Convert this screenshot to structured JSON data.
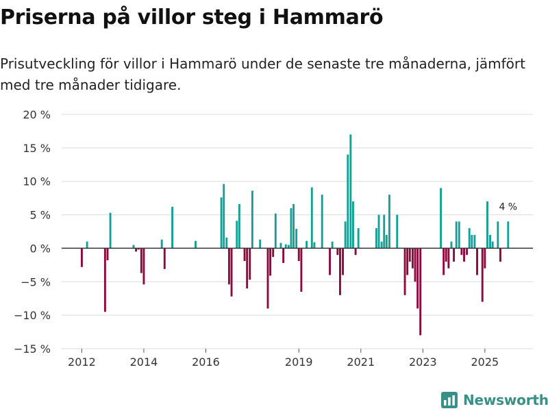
{
  "header": {
    "title": "Priserna på villor steg i Hammarö",
    "subtitle": "Prisutveckling för villor i Hammarö under de senaste tre månaderna, jämfört med tre månader tidigare."
  },
  "brand": {
    "name": "Newsworthy",
    "icon": "bar-chart-icon",
    "color": "#3a8f86"
  },
  "colors": {
    "positive": "#14a098",
    "negative": "#8c0a3e",
    "grid": "#dcdcdc",
    "zero": "#333333"
  },
  "chart_data": {
    "type": "bar",
    "title": "Priserna på villor steg i Hammarö",
    "xlabel": "",
    "ylabel": "",
    "ylim": [
      -15,
      20
    ],
    "y_ticks": [
      20,
      15,
      10,
      5,
      0,
      -5,
      -10,
      -15
    ],
    "y_tick_labels": [
      "20 %",
      "15 %",
      "10 %",
      "5 %",
      "0 %",
      "−5 %",
      "−10 %",
      "−15 %"
    ],
    "x_ticks": [
      2012,
      2014,
      2016,
      2019,
      2021,
      2023,
      2025
    ],
    "x_tick_labels": [
      "2012",
      "2014",
      "2016",
      "2019",
      "2021",
      "2023",
      "2025"
    ],
    "x_range": [
      2011.35,
      2026.55
    ],
    "grid": true,
    "legend": "none",
    "annotation": {
      "x": 2025.75,
      "value": 4,
      "text": "4 %"
    },
    "x": [
      2012.0,
      2012.17,
      2012.75,
      2012.83,
      2012.92,
      2013.08,
      2013.67,
      2013.75,
      2013.83,
      2013.92,
      2014.0,
      2014.58,
      2014.67,
      2014.92,
      2015.67,
      2016.5,
      2016.58,
      2016.67,
      2016.75,
      2016.83,
      2017.0,
      2017.08,
      2017.25,
      2017.33,
      2017.42,
      2017.5,
      2017.75,
      2018.0,
      2018.08,
      2018.17,
      2018.25,
      2018.42,
      2018.5,
      2018.58,
      2018.67,
      2018.75,
      2018.83,
      2018.92,
      2019.0,
      2019.08,
      2019.25,
      2019.42,
      2019.5,
      2019.75,
      2020.0,
      2020.08,
      2020.25,
      2020.33,
      2020.42,
      2020.5,
      2020.58,
      2020.67,
      2020.75,
      2020.83,
      2020.92,
      2021.5,
      2021.58,
      2021.67,
      2021.75,
      2021.83,
      2021.92,
      2022.17,
      2022.42,
      2022.5,
      2022.58,
      2022.67,
      2022.75,
      2022.83,
      2022.92,
      2023.58,
      2023.67,
      2023.75,
      2023.83,
      2023.92,
      2024.0,
      2024.08,
      2024.17,
      2024.25,
      2024.33,
      2024.42,
      2024.5,
      2024.58,
      2024.67,
      2024.75,
      2024.92,
      2025.0,
      2025.08,
      2025.17,
      2025.25,
      2025.42,
      2025.5,
      2025.58,
      2025.75
    ],
    "values": [
      -2.8,
      1.0,
      -9.5,
      -1.8,
      5.3,
      0.0,
      0.5,
      -0.5,
      -0.2,
      -3.7,
      -5.4,
      1.3,
      -3.1,
      6.2,
      1.1,
      7.6,
      9.6,
      1.6,
      -5.4,
      -7.2,
      4.1,
      6.6,
      -1.9,
      -6.0,
      -4.7,
      8.6,
      1.3,
      -9.0,
      -4.1,
      -1.3,
      5.2,
      0.8,
      -2.2,
      0.6,
      0.5,
      6.0,
      6.6,
      2.9,
      -1.9,
      -6.5,
      1.1,
      9.1,
      0.9,
      8.0,
      -4.0,
      1.0,
      -1.0,
      -7.0,
      -4.0,
      4.0,
      14.0,
      17.0,
      7.0,
      -1.0,
      3.0,
      3.0,
      5.0,
      1.0,
      5.0,
      2.0,
      8.0,
      5.0,
      -7.0,
      -4.0,
      -2.0,
      -3.0,
      -5.0,
      -9.0,
      -13.0,
      9.0,
      -4.0,
      -2.0,
      -3.0,
      1.0,
      -2.0,
      4.0,
      4.0,
      -1.0,
      -2.0,
      -1.0,
      3.0,
      2.0,
      2.0,
      -4.0,
      -8.0,
      -3.0,
      7.0,
      2.0,
      1.0,
      4.0,
      -2.0,
      0.0,
      4.0
    ]
  }
}
